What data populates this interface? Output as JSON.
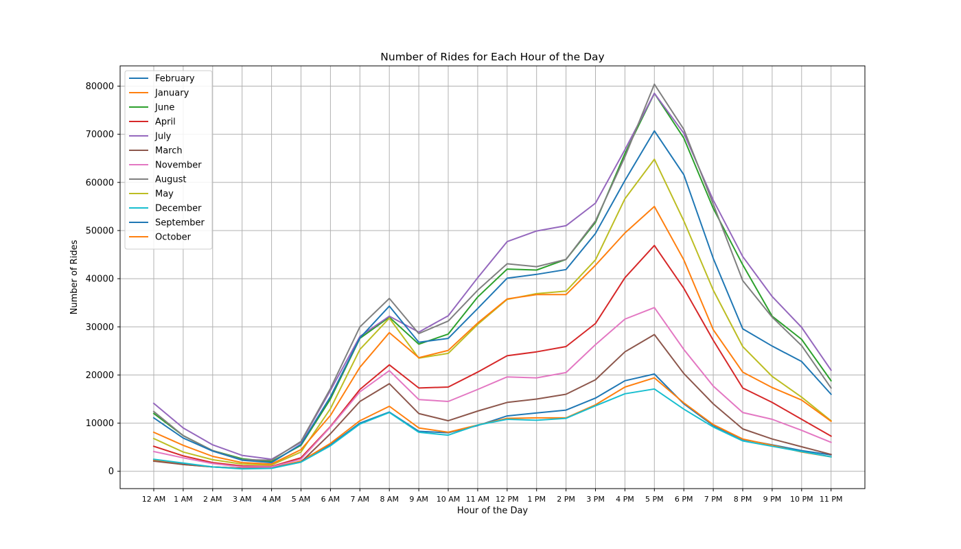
{
  "chart_data": {
    "type": "line",
    "title": "Number of Rides for Each Hour of the Day",
    "xlabel": "Hour of the Day",
    "ylabel": "Number of Rides",
    "categories": [
      "12 AM",
      "1 AM",
      "2 AM",
      "3 AM",
      "4 AM",
      "5 AM",
      "6 AM",
      "7 AM",
      "8 AM",
      "9 AM",
      "10 AM",
      "11 AM",
      "12 PM",
      "1 PM",
      "2 PM",
      "3 PM",
      "4 PM",
      "5 PM",
      "6 PM",
      "7 PM",
      "8 PM",
      "9 PM",
      "10 PM",
      "11 PM"
    ],
    "yticks": [
      0,
      10000,
      20000,
      30000,
      40000,
      50000,
      60000,
      70000,
      80000
    ],
    "ytick_labels": [
      "0",
      "10000",
      "20000",
      "30000",
      "40000",
      "50000",
      "60000",
      "70000",
      "80000"
    ],
    "ylim": [
      -3600,
      84200
    ],
    "grid": true,
    "legend_position": "upper-left",
    "series": [
      {
        "name": "February",
        "color": "#1f77b4",
        "values": [
          2400,
          1500,
          900,
          600,
          700,
          2000,
          5500,
          10000,
          12300,
          8300,
          8000,
          9500,
          11500,
          12100,
          12700,
          15200,
          18800,
          20200,
          14000,
          9500,
          6600,
          5500,
          4300,
          3400
        ]
      },
      {
        "name": "January",
        "color": "#ff7f0e",
        "values": [
          2300,
          1400,
          900,
          600,
          700,
          2100,
          5800,
          10500,
          13500,
          9000,
          8100,
          9600,
          11000,
          11100,
          11100,
          13800,
          17500,
          19400,
          14200,
          9700,
          6700,
          5400,
          4000,
          3000
        ]
      },
      {
        "name": "June",
        "color": "#2ca02c",
        "values": [
          12000,
          7400,
          4300,
          2600,
          2000,
          5400,
          15000,
          27600,
          32000,
          26400,
          28500,
          36200,
          42000,
          41800,
          44000,
          51700,
          66000,
          78500,
          69200,
          54600,
          42900,
          32200,
          27400,
          18800
        ]
      },
      {
        "name": "April",
        "color": "#d62728",
        "values": [
          5200,
          3200,
          1800,
          1100,
          1000,
          2800,
          9300,
          17000,
          22100,
          17300,
          17500,
          20600,
          24000,
          24800,
          25900,
          30700,
          40200,
          46900,
          38000,
          27200,
          17300,
          14300,
          10800,
          7300
        ]
      },
      {
        "name": "July",
        "color": "#9467bd",
        "values": [
          14100,
          9000,
          5500,
          3300,
          2500,
          6000,
          16800,
          28000,
          32200,
          28900,
          32300,
          40200,
          47700,
          49900,
          51000,
          55700,
          66800,
          78500,
          70200,
          56300,
          44600,
          36300,
          29900,
          21000
        ]
      },
      {
        "name": "March",
        "color": "#8c564b",
        "values": [
          2100,
          1400,
          900,
          600,
          700,
          1900,
          7800,
          14500,
          18200,
          12000,
          10500,
          12500,
          14300,
          15000,
          16000,
          19000,
          24800,
          28400,
          20300,
          14000,
          8800,
          6700,
          5100,
          3500
        ]
      },
      {
        "name": "November",
        "color": "#e377c2",
        "values": [
          4100,
          2800,
          1600,
          900,
          900,
          2500,
          9200,
          16500,
          20900,
          14900,
          14500,
          17000,
          19600,
          19400,
          20500,
          26300,
          31600,
          34000,
          25300,
          17700,
          12200,
          10800,
          8500,
          6000
        ]
      },
      {
        "name": "August",
        "color": "#7f7f7f",
        "values": [
          12400,
          7400,
          4300,
          2400,
          2300,
          6200,
          17200,
          30000,
          35900,
          28600,
          31200,
          37600,
          43100,
          42500,
          44000,
          52000,
          65300,
          80400,
          71000,
          55500,
          39600,
          32000,
          26100,
          17300
        ]
      },
      {
        "name": "May",
        "color": "#bcbd22",
        "values": [
          6800,
          4000,
          2400,
          1500,
          1300,
          4000,
          13000,
          25300,
          31800,
          23500,
          24500,
          30500,
          35700,
          36900,
          37400,
          43900,
          56600,
          64800,
          52000,
          37600,
          25900,
          19700,
          15400,
          10500
        ]
      },
      {
        "name": "December",
        "color": "#17becf",
        "values": [
          2500,
          1700,
          900,
          500,
          600,
          1900,
          5300,
          9800,
          12200,
          8100,
          7500,
          9600,
          10800,
          10600,
          11000,
          13600,
          16100,
          17100,
          12900,
          9200,
          6300,
          5200,
          4100,
          3000
        ]
      },
      {
        "name": "September",
        "color": "#1f77b4",
        "values": [
          11100,
          6900,
          4200,
          2300,
          1800,
          5600,
          15500,
          27700,
          34300,
          26800,
          27600,
          33800,
          40100,
          40900,
          41900,
          49400,
          60400,
          70700,
          61600,
          44200,
          29600,
          26000,
          22800,
          16000
        ]
      },
      {
        "name": "October",
        "color": "#ff7f0e",
        "values": [
          8100,
          5400,
          3100,
          1800,
          1500,
          4500,
          11600,
          21600,
          28800,
          23600,
          25100,
          30800,
          35800,
          36700,
          36700,
          42800,
          49500,
          55000,
          43900,
          29400,
          20600,
          17400,
          14800,
          10400
        ]
      }
    ]
  }
}
